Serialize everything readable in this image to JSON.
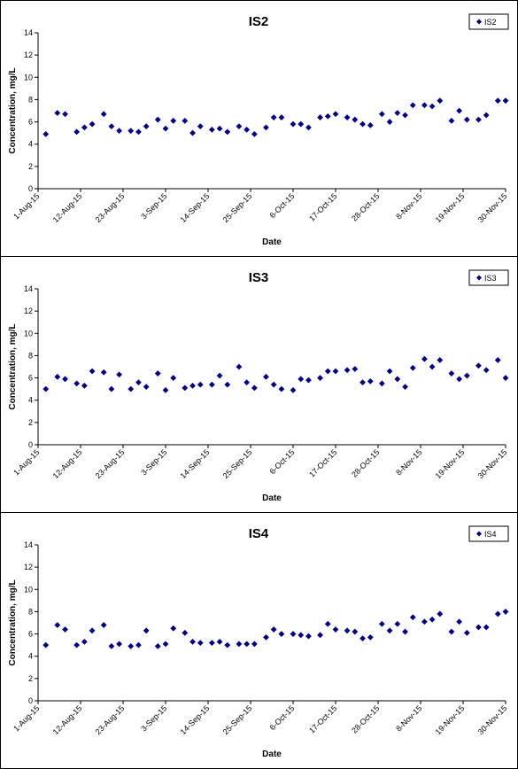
{
  "chart_data": [
    {
      "type": "scatter",
      "title": "IS2",
      "xlabel": "Date",
      "ylabel": "Concentration, mg/L",
      "ylim": [
        0,
        14
      ],
      "yticks": [
        0,
        2,
        4,
        6,
        8,
        10,
        12,
        14
      ],
      "xlim": [
        "2015-08-01",
        "2015-11-30"
      ],
      "xticks": [
        "1-Aug-15",
        "12-Aug-15",
        "23-Aug-15",
        "3-Sep-15",
        "14-Sep-15",
        "25-Sep-15",
        "6-Oct-15",
        "17-Oct-15",
        "28-Oct-15",
        "8-Nov-15",
        "19-Nov-15",
        "30-Nov-15"
      ],
      "grid": false,
      "legend": "top-right",
      "marker_color": "#000080",
      "series": [
        {
          "name": "IS2",
          "x": [
            "2015-08-03",
            "2015-08-06",
            "2015-08-08",
            "2015-08-11",
            "2015-08-13",
            "2015-08-15",
            "2015-08-18",
            "2015-08-20",
            "2015-08-22",
            "2015-08-25",
            "2015-08-27",
            "2015-08-29",
            "2015-09-01",
            "2015-09-03",
            "2015-09-05",
            "2015-09-08",
            "2015-09-10",
            "2015-09-12",
            "2015-09-15",
            "2015-09-17",
            "2015-09-19",
            "2015-09-22",
            "2015-09-24",
            "2015-09-26",
            "2015-09-29",
            "2015-10-01",
            "2015-10-03",
            "2015-10-06",
            "2015-10-08",
            "2015-10-10",
            "2015-10-13",
            "2015-10-15",
            "2015-10-17",
            "2015-10-20",
            "2015-10-22",
            "2015-10-24",
            "2015-10-26",
            "2015-10-29",
            "2015-10-31",
            "2015-11-02",
            "2015-11-04",
            "2015-11-06",
            "2015-11-09",
            "2015-11-11",
            "2015-11-13",
            "2015-11-16",
            "2015-11-18",
            "2015-11-20",
            "2015-11-23",
            "2015-11-25",
            "2015-11-28",
            "2015-11-30"
          ],
          "y": [
            4.9,
            6.8,
            6.7,
            5.1,
            5.5,
            5.8,
            6.7,
            5.6,
            5.2,
            5.2,
            5.1,
            5.6,
            6.2,
            5.4,
            6.1,
            6.1,
            5.0,
            5.6,
            5.3,
            5.4,
            5.1,
            5.6,
            5.3,
            4.9,
            5.5,
            6.4,
            6.4,
            5.8,
            5.8,
            5.5,
            6.4,
            6.5,
            6.7,
            6.4,
            6.2,
            5.8,
            5.7,
            6.7,
            6.0,
            6.8,
            6.6,
            7.5,
            7.5,
            7.4,
            7.9,
            6.1,
            7.0,
            6.2,
            6.2,
            6.6,
            7.9,
            7.9
          ]
        }
      ]
    },
    {
      "type": "scatter",
      "title": "IS3",
      "xlabel": "Date",
      "ylabel": "Concentration, mg/L",
      "ylim": [
        0,
        14
      ],
      "yticks": [
        0,
        2,
        4,
        6,
        8,
        10,
        12,
        14
      ],
      "xlim": [
        "2015-08-01",
        "2015-11-30"
      ],
      "xticks": [
        "1-Aug-15",
        "12-Aug-15",
        "23-Aug-15",
        "3-Sep-15",
        "14-Sep-15",
        "25-Sep-15",
        "6-Oct-15",
        "17-Oct-15",
        "28-Oct-15",
        "8-Nov-15",
        "19-Nov-15",
        "30-Nov-15"
      ],
      "grid": false,
      "legend": "top-right",
      "marker_color": "#000080",
      "series": [
        {
          "name": "IS3",
          "x": [
            "2015-08-03",
            "2015-08-06",
            "2015-08-08",
            "2015-08-11",
            "2015-08-13",
            "2015-08-15",
            "2015-08-18",
            "2015-08-20",
            "2015-08-22",
            "2015-08-25",
            "2015-08-27",
            "2015-08-29",
            "2015-09-01",
            "2015-09-03",
            "2015-09-05",
            "2015-09-08",
            "2015-09-10",
            "2015-09-12",
            "2015-09-15",
            "2015-09-17",
            "2015-09-19",
            "2015-09-22",
            "2015-09-24",
            "2015-09-26",
            "2015-09-29",
            "2015-10-01",
            "2015-10-03",
            "2015-10-06",
            "2015-10-08",
            "2015-10-10",
            "2015-10-13",
            "2015-10-15",
            "2015-10-17",
            "2015-10-20",
            "2015-10-22",
            "2015-10-24",
            "2015-10-26",
            "2015-10-29",
            "2015-10-31",
            "2015-11-02",
            "2015-11-04",
            "2015-11-06",
            "2015-11-09",
            "2015-11-11",
            "2015-11-13",
            "2015-11-16",
            "2015-11-18",
            "2015-11-20",
            "2015-11-23",
            "2015-11-25",
            "2015-11-28",
            "2015-11-30"
          ],
          "y": [
            5.0,
            6.1,
            5.9,
            5.5,
            5.3,
            6.6,
            6.5,
            5.0,
            6.3,
            5.0,
            5.6,
            5.2,
            6.4,
            4.9,
            6.0,
            5.1,
            5.3,
            5.4,
            5.4,
            6.2,
            5.4,
            7.0,
            5.6,
            5.1,
            6.1,
            5.4,
            5.0,
            4.9,
            5.9,
            5.8,
            6.0,
            6.6,
            6.6,
            6.7,
            6.8,
            5.6,
            5.7,
            5.5,
            6.6,
            5.9,
            5.2,
            6.9,
            7.7,
            7.0,
            7.6,
            6.4,
            5.9,
            6.2,
            7.1,
            6.7,
            7.6,
            6.0
          ]
        }
      ]
    },
    {
      "type": "scatter",
      "title": "IS4",
      "xlabel": "Date",
      "ylabel": "Concentration, mg/L",
      "ylim": [
        0,
        14
      ],
      "yticks": [
        0,
        2,
        4,
        6,
        8,
        10,
        12,
        14
      ],
      "xlim": [
        "2015-08-01",
        "2015-11-30"
      ],
      "xticks": [
        "1-Aug-15",
        "12-Aug-15",
        "23-Aug-15",
        "3-Sep-15",
        "14-Sep-15",
        "25-Sep-15",
        "6-Oct-15",
        "17-Oct-15",
        "28-Oct-15",
        "8-Nov-15",
        "19-Nov-15",
        "30-Nov-15"
      ],
      "grid": false,
      "legend": "top-right",
      "marker_color": "#000080",
      "series": [
        {
          "name": "IS4",
          "x": [
            "2015-08-03",
            "2015-08-06",
            "2015-08-08",
            "2015-08-11",
            "2015-08-13",
            "2015-08-15",
            "2015-08-18",
            "2015-08-20",
            "2015-08-22",
            "2015-08-25",
            "2015-08-27",
            "2015-08-29",
            "2015-09-01",
            "2015-09-03",
            "2015-09-05",
            "2015-09-08",
            "2015-09-10",
            "2015-09-12",
            "2015-09-15",
            "2015-09-17",
            "2015-09-19",
            "2015-09-22",
            "2015-09-24",
            "2015-09-26",
            "2015-09-29",
            "2015-10-01",
            "2015-10-03",
            "2015-10-06",
            "2015-10-08",
            "2015-10-10",
            "2015-10-13",
            "2015-10-15",
            "2015-10-17",
            "2015-10-20",
            "2015-10-22",
            "2015-10-24",
            "2015-10-26",
            "2015-10-29",
            "2015-10-31",
            "2015-11-02",
            "2015-11-04",
            "2015-11-06",
            "2015-11-09",
            "2015-11-11",
            "2015-11-13",
            "2015-11-16",
            "2015-11-18",
            "2015-11-20",
            "2015-11-23",
            "2015-11-25",
            "2015-11-28",
            "2015-11-30"
          ],
          "y": [
            5.0,
            6.8,
            6.4,
            5.0,
            5.3,
            6.3,
            6.8,
            4.9,
            5.1,
            4.9,
            5.0,
            6.3,
            4.9,
            5.1,
            6.5,
            6.1,
            5.3,
            5.2,
            5.2,
            5.3,
            5.0,
            5.1,
            5.1,
            5.1,
            5.7,
            6.4,
            6.0,
            6.0,
            5.9,
            5.8,
            5.9,
            6.9,
            6.4,
            6.3,
            6.2,
            5.6,
            5.7,
            6.9,
            6.3,
            6.9,
            6.2,
            7.5,
            7.1,
            7.3,
            7.8,
            6.2,
            7.1,
            6.1,
            6.6,
            6.6,
            7.8,
            8.0
          ]
        }
      ]
    }
  ]
}
